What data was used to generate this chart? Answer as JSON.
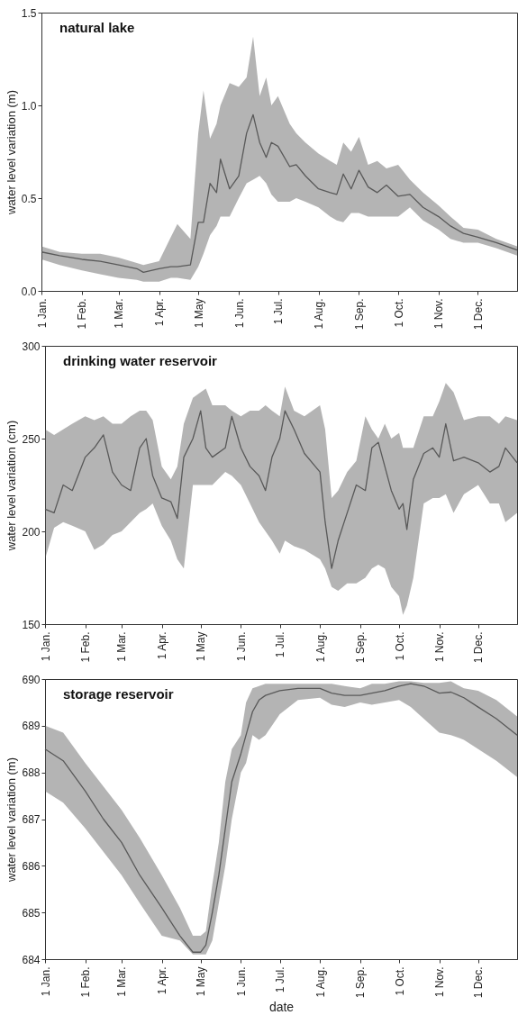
{
  "chart_data": [
    {
      "type": "line",
      "title": "natural lake",
      "ylabel": "water level variation (m)",
      "x": [
        "--01-01",
        "--01-15",
        "--02-01",
        "--02-15",
        "--03-01",
        "--03-15",
        "--03-20",
        "--04-01",
        "--04-10",
        "--04-15",
        "--04-25",
        "--05-01",
        "--05-05",
        "--05-10",
        "--05-15",
        "--05-18",
        "--05-25",
        "--06-01",
        "--06-07",
        "--06-12",
        "--06-17",
        "--06-22",
        "--06-26",
        "--07-01",
        "--07-10",
        "--07-15",
        "--07-22",
        "--08-01",
        "--08-10",
        "--08-15",
        "--08-20",
        "--08-26",
        "--09-01",
        "--09-08",
        "--09-15",
        "--09-22",
        "--10-01",
        "--10-10",
        "--10-20",
        "--11-01",
        "--11-10",
        "--11-20",
        "--12-01",
        "--12-15",
        "--12-31"
      ],
      "series": [
        {
          "color": "#595959",
          "values": [
            0.21,
            0.19,
            0.17,
            0.16,
            0.14,
            0.12,
            0.1,
            0.12,
            0.13,
            0.13,
            0.14,
            0.37,
            0.37,
            0.58,
            0.53,
            0.71,
            0.55,
            0.62,
            0.85,
            0.95,
            0.8,
            0.72,
            0.8,
            0.78,
            0.67,
            0.68,
            0.62,
            0.55,
            0.53,
            0.52,
            0.63,
            0.55,
            0.65,
            0.56,
            0.53,
            0.57,
            0.51,
            0.52,
            0.45,
            0.4,
            0.35,
            0.31,
            0.29,
            0.26,
            0.22
          ],
          "lower": [
            0.17,
            0.14,
            0.11,
            0.09,
            0.07,
            0.06,
            0.05,
            0.05,
            0.07,
            0.07,
            0.06,
            0.13,
            0.2,
            0.3,
            0.35,
            0.4,
            0.4,
            0.5,
            0.58,
            0.6,
            0.62,
            0.58,
            0.52,
            0.48,
            0.48,
            0.5,
            0.48,
            0.45,
            0.4,
            0.38,
            0.37,
            0.42,
            0.42,
            0.4,
            0.4,
            0.4,
            0.4,
            0.45,
            0.38,
            0.33,
            0.28,
            0.26,
            0.26,
            0.23,
            0.19
          ],
          "upper": [
            0.24,
            0.21,
            0.2,
            0.2,
            0.18,
            0.15,
            0.14,
            0.16,
            0.29,
            0.36,
            0.28,
            0.85,
            1.08,
            0.82,
            0.9,
            1.0,
            1.12,
            1.1,
            1.15,
            1.37,
            1.05,
            1.15,
            1.0,
            1.05,
            0.9,
            0.85,
            0.8,
            0.74,
            0.7,
            0.68,
            0.8,
            0.75,
            0.83,
            0.68,
            0.7,
            0.66,
            0.68,
            0.6,
            0.53,
            0.46,
            0.4,
            0.34,
            0.33,
            0.28,
            0.24
          ]
        }
      ],
      "xlim": [
        "--01-01",
        "--12-31"
      ],
      "xticks": [
        {
          "value": "--01-01",
          "label": "1 Jan."
        },
        {
          "value": "--02-01",
          "label": "1 Feb."
        },
        {
          "value": "--03-01",
          "label": "1 Mar."
        },
        {
          "value": "--04-01",
          "label": "1 Apr."
        },
        {
          "value": "--05-01",
          "label": "1 May"
        },
        {
          "value": "--06-01",
          "label": "1 Jun."
        },
        {
          "value": "--07-01",
          "label": "1 Jul."
        },
        {
          "value": "--08-01",
          "label": "1 Aug."
        },
        {
          "value": "--09-01",
          "label": "1 Sep."
        },
        {
          "value": "--10-01",
          "label": "1 Oct."
        },
        {
          "value": "--11-01",
          "label": "1 Nov."
        },
        {
          "value": "--12-01",
          "label": "1 Dec."
        }
      ],
      "ylim": [
        0,
        1.5
      ],
      "yticks": [
        {
          "value": 0,
          "label": "0.0"
        },
        {
          "value": 0.5,
          "label": "0.5"
        },
        {
          "value": 1,
          "label": "1.0"
        },
        {
          "value": 1.5,
          "label": "1.5"
        }
      ]
    },
    {
      "type": "line",
      "title": "drinking water reservoir",
      "ylabel": "water level variation (cm)",
      "x": [
        "--01-01",
        "--01-08",
        "--01-15",
        "--01-22",
        "--02-01",
        "--02-08",
        "--02-15",
        "--02-22",
        "--03-01",
        "--03-08",
        "--03-15",
        "--03-20",
        "--03-25",
        "--04-01",
        "--04-08",
        "--04-13",
        "--04-18",
        "--04-25",
        "--05-01",
        "--05-05",
        "--05-10",
        "--05-20",
        "--05-25",
        "--06-01",
        "--06-08",
        "--06-15",
        "--06-20",
        "--06-25",
        "--07-01",
        "--07-05",
        "--07-12",
        "--07-20",
        "--08-01",
        "--08-05",
        "--08-10",
        "--08-15",
        "--08-22",
        "--08-29",
        "--09-05",
        "--09-10",
        "--09-15",
        "--09-20",
        "--09-25",
        "--10-01",
        "--10-04",
        "--10-07",
        "--10-12",
        "--10-20",
        "--10-27",
        "--11-01",
        "--11-06",
        "--11-12",
        "--11-20",
        "--12-01",
        "--12-10",
        "--12-17",
        "--12-22",
        "--12-31"
      ],
      "series": [
        {
          "color": "#595959",
          "values": [
            212,
            210,
            225,
            222,
            240,
            245,
            252,
            232,
            225,
            222,
            245,
            250,
            230,
            218,
            216,
            207,
            240,
            250,
            265,
            245,
            240,
            245,
            262,
            245,
            235,
            230,
            222,
            240,
            250,
            265,
            255,
            242,
            232,
            205,
            180,
            195,
            210,
            225,
            222,
            245,
            248,
            235,
            222,
            212,
            215,
            201,
            228,
            242,
            245,
            240,
            258,
            238,
            240,
            237,
            232,
            235,
            245,
            237
          ],
          "lower": [
            185,
            202,
            205,
            203,
            200,
            190,
            193,
            198,
            200,
            205,
            210,
            212,
            215,
            203,
            195,
            185,
            180,
            225,
            225,
            225,
            225,
            232,
            230,
            225,
            215,
            205,
            200,
            195,
            188,
            195,
            192,
            190,
            185,
            180,
            170,
            168,
            172,
            172,
            175,
            180,
            182,
            180,
            170,
            165,
            155,
            160,
            175,
            215,
            218,
            218,
            220,
            210,
            220,
            225,
            215,
            215,
            205,
            210
          ],
          "upper": [
            255,
            252,
            255,
            258,
            262,
            260,
            262,
            258,
            258,
            262,
            265,
            265,
            260,
            235,
            228,
            235,
            258,
            272,
            275,
            277,
            268,
            268,
            265,
            262,
            265,
            265,
            268,
            265,
            262,
            278,
            265,
            262,
            268,
            255,
            218,
            222,
            232,
            238,
            262,
            255,
            250,
            258,
            250,
            253,
            245,
            245,
            245,
            262,
            262,
            270,
            280,
            275,
            260,
            262,
            262,
            258,
            262,
            260
          ]
        }
      ],
      "xlim": [
        "--01-01",
        "--12-31"
      ],
      "xticks": [
        {
          "value": "--01-01",
          "label": "1 Jan."
        },
        {
          "value": "--02-01",
          "label": "1 Feb."
        },
        {
          "value": "--03-01",
          "label": "1 Mar."
        },
        {
          "value": "--04-01",
          "label": "1 Apr."
        },
        {
          "value": "--05-01",
          "label": "1 May"
        },
        {
          "value": "--06-01",
          "label": "1 Jun."
        },
        {
          "value": "--07-01",
          "label": "1 Jul."
        },
        {
          "value": "--08-01",
          "label": "1 Aug."
        },
        {
          "value": "--09-01",
          "label": "1 Sep."
        },
        {
          "value": "--10-01",
          "label": "1 Oct."
        },
        {
          "value": "--11-01",
          "label": "1 Nov."
        },
        {
          "value": "--12-01",
          "label": "1 Dec."
        }
      ],
      "ylim": [
        150,
        300
      ],
      "yticks": [
        150,
        200,
        250,
        300
      ]
    },
    {
      "type": "line",
      "title": "storage reservoir",
      "xlabel": "date",
      "ylabel": "water level variation (m)",
      "x": [
        "--01-01",
        "--01-15",
        "--02-01",
        "--02-15",
        "--03-01",
        "--03-15",
        "--04-01",
        "--04-15",
        "--04-25",
        "--05-01",
        "--05-05",
        "--05-10",
        "--05-15",
        "--05-20",
        "--05-25",
        "--06-01",
        "--06-05",
        "--06-10",
        "--06-15",
        "--06-20",
        "--07-01",
        "--07-15",
        "--08-01",
        "--08-10",
        "--08-20",
        "--09-01",
        "--09-10",
        "--09-20",
        "--10-01",
        "--10-10",
        "--10-20",
        "--11-01",
        "--11-10",
        "--11-20",
        "--12-01",
        "--12-15",
        "--12-31"
      ],
      "series": [
        {
          "color": "#595959",
          "values": [
            688.5,
            688.25,
            687.6,
            687.0,
            686.5,
            685.8,
            685.1,
            684.5,
            684.15,
            684.15,
            684.3,
            685.0,
            685.8,
            686.8,
            687.8,
            688.4,
            688.8,
            689.3,
            689.55,
            689.65,
            689.75,
            689.8,
            689.8,
            689.7,
            689.65,
            689.65,
            689.7,
            689.75,
            689.85,
            689.9,
            689.85,
            689.7,
            689.72,
            689.6,
            689.4,
            689.15,
            688.8
          ],
          "lower": [
            687.6,
            687.35,
            686.8,
            686.3,
            685.8,
            685.2,
            684.5,
            684.4,
            684.1,
            684.1,
            684.1,
            684.4,
            685.2,
            686.0,
            687.0,
            688.0,
            688.2,
            688.8,
            688.7,
            688.8,
            689.25,
            689.55,
            689.6,
            689.45,
            689.4,
            689.5,
            689.45,
            689.5,
            689.55,
            689.4,
            689.15,
            688.85,
            688.8,
            688.7,
            688.5,
            688.25,
            687.9
          ],
          "upper": [
            689.0,
            688.85,
            688.2,
            687.7,
            687.2,
            686.6,
            685.8,
            685.1,
            684.5,
            684.5,
            684.6,
            685.6,
            686.5,
            687.8,
            688.5,
            688.8,
            689.5,
            689.8,
            689.85,
            689.9,
            689.9,
            689.9,
            689.9,
            689.9,
            689.85,
            689.8,
            689.9,
            689.9,
            689.95,
            689.95,
            689.92,
            689.92,
            689.95,
            689.8,
            689.75,
            689.55,
            689.2
          ]
        }
      ],
      "xlim": [
        "--01-01",
        "--12-31"
      ],
      "xticks": [
        {
          "value": "--01-01",
          "label": "1 Jan."
        },
        {
          "value": "--02-01",
          "label": "1 Feb."
        },
        {
          "value": "--03-01",
          "label": "1 Mar."
        },
        {
          "value": "--04-01",
          "label": "1 Apr."
        },
        {
          "value": "--05-01",
          "label": "1 May"
        },
        {
          "value": "--06-01",
          "label": "1 Jun."
        },
        {
          "value": "--07-01",
          "label": "1 Jul."
        },
        {
          "value": "--08-01",
          "label": "1 Aug."
        },
        {
          "value": "--09-01",
          "label": "1 Sep."
        },
        {
          "value": "--10-01",
          "label": "1 Oct."
        },
        {
          "value": "--11-01",
          "label": "1 Nov."
        },
        {
          "value": "--12-01",
          "label": "1 Dec."
        }
      ],
      "ylim": [
        684,
        690
      ],
      "yticks": [
        684,
        685,
        686,
        687,
        688,
        689,
        690
      ]
    }
  ]
}
